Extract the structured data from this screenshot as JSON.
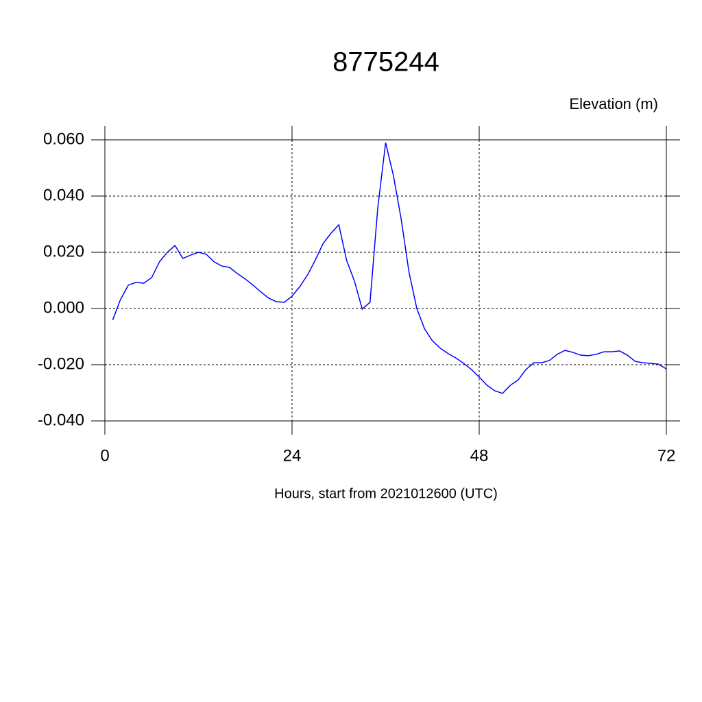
{
  "chart_data": {
    "type": "line",
    "title": "8775244",
    "ylabel": "Elevation (m)",
    "xlabel": "Hours, start from 2021012600 (UTC)",
    "x": [
      1,
      2,
      3,
      4,
      5,
      6,
      7,
      8,
      9,
      10,
      11,
      12,
      13,
      14,
      15,
      16,
      17,
      18,
      19,
      20,
      21,
      22,
      23,
      24,
      25,
      26,
      27,
      28,
      29,
      30,
      31,
      32,
      33,
      34,
      35,
      36,
      37,
      38,
      39,
      40,
      41,
      42,
      43,
      44,
      45,
      46,
      47,
      48,
      49,
      50,
      51,
      52,
      53,
      54,
      55,
      56,
      57,
      58,
      59,
      60,
      61,
      62,
      63,
      64,
      65,
      66,
      67,
      68,
      69,
      70,
      71,
      72
    ],
    "series": [
      {
        "color": "#0000ff",
        "values": [
          -0.0041,
          0.0032,
          0.0083,
          0.0093,
          0.009,
          0.011,
          0.0166,
          0.02,
          0.0224,
          0.0178,
          0.019,
          0.02,
          0.0193,
          0.0166,
          0.0151,
          0.0146,
          0.0124,
          0.0105,
          0.0083,
          0.0059,
          0.0037,
          0.0024,
          0.0022,
          0.0044,
          0.0078,
          0.012,
          0.0173,
          0.0232,
          0.0268,
          0.0298,
          0.0171,
          0.0098,
          -0.0002,
          0.0022,
          0.036,
          0.059,
          0.0473,
          0.0317,
          0.0129,
          0.0,
          -0.0073,
          -0.0115,
          -0.0141,
          -0.016,
          -0.0176,
          -0.0195,
          -0.0217,
          -0.0244,
          -0.0273,
          -0.0293,
          -0.0302,
          -0.0273,
          -0.0254,
          -0.0217,
          -0.0193,
          -0.0193,
          -0.0185,
          -0.0163,
          -0.0149,
          -0.0156,
          -0.0166,
          -0.0168,
          -0.0163,
          -0.0154,
          -0.0154,
          -0.0151,
          -0.0166,
          -0.0188,
          -0.0193,
          -0.0195,
          -0.0198,
          -0.0215
        ]
      }
    ],
    "xlim": [
      0,
      72
    ],
    "xticks": [
      0,
      24,
      48,
      72
    ],
    "ylim": [
      -0.04,
      0.06
    ],
    "yticks": [
      {
        "value": -0.04,
        "label": "-0.040"
      },
      {
        "value": -0.02,
        "label": "-0.020"
      },
      {
        "value": 0,
        "label": "0.000"
      },
      {
        "value": 0.02,
        "label": "0.020"
      },
      {
        "value": 0.04,
        "label": "0.040"
      },
      {
        "value": 0.06,
        "label": "0.060"
      }
    ],
    "grid": true
  }
}
